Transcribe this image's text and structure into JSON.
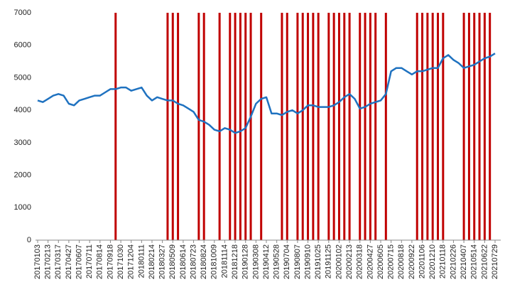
{
  "chart_data": {
    "type": "combo",
    "categories": [
      "20170103",
      null,
      "20170213",
      null,
      "20170317",
      null,
      "20170427",
      null,
      "20170607",
      null,
      "20170711",
      null,
      "20170814",
      null,
      "20170918",
      null,
      "20171030",
      null,
      "20171204",
      null,
      "20180111",
      null,
      "20180214",
      null,
      "20180327",
      null,
      "20180509",
      null,
      "20180614",
      null,
      "20180723",
      null,
      "20180824",
      null,
      "20181009",
      null,
      "20181114",
      null,
      "20181218",
      null,
      "20190128",
      null,
      "20190308",
      null,
      "20190412",
      null,
      "20190528",
      null,
      "20190704",
      null,
      "20190807",
      null,
      "20190910",
      null,
      "20191025",
      null,
      "20191125",
      null,
      "20200102",
      null,
      "20200213",
      null,
      "20200318",
      null,
      "20200427",
      null,
      "20200605",
      null,
      "20200715",
      null,
      "20200818",
      null,
      "20200922",
      null,
      "20201106",
      null,
      "20201210",
      null,
      "20210118",
      null,
      "20210226",
      null,
      "20210407",
      null,
      "20210514",
      null,
      "20210622",
      null,
      "20210729"
    ],
    "series": [
      {
        "type": "bar",
        "color": "#c00000",
        "values": [
          null,
          null,
          null,
          null,
          null,
          null,
          null,
          null,
          null,
          null,
          null,
          null,
          null,
          null,
          null,
          7000,
          null,
          null,
          null,
          null,
          null,
          null,
          null,
          null,
          null,
          7000,
          7000,
          7000,
          null,
          null,
          null,
          7000,
          7000,
          null,
          null,
          7000,
          null,
          7000,
          7000,
          7000,
          7000,
          7000,
          null,
          7000,
          null,
          null,
          null,
          7000,
          7000,
          null,
          7000,
          7000,
          7000,
          7000,
          7000,
          null,
          7000,
          7000,
          7000,
          7000,
          7000,
          null,
          7000,
          7000,
          7000,
          7000,
          null,
          7000,
          null,
          null,
          null,
          null,
          null,
          7000,
          7000,
          7000,
          7000,
          7000,
          7000,
          null,
          null,
          null,
          7000,
          7000,
          7000,
          7000,
          7000,
          7000,
          null
        ]
      },
      {
        "type": "line",
        "color": "#1f72c0",
        "values": [
          4300,
          4250,
          4350,
          4450,
          4500,
          4450,
          4200,
          4150,
          4300,
          4350,
          4400,
          4450,
          4450,
          4550,
          4650,
          4650,
          4700,
          4700,
          4600,
          4650,
          4700,
          4450,
          4300,
          4400,
          4350,
          4300,
          4300,
          4200,
          4150,
          4050,
          3950,
          3700,
          3650,
          3550,
          3400,
          3350,
          3450,
          3400,
          3300,
          3350,
          3450,
          3800,
          4200,
          4350,
          4400,
          3900,
          3900,
          3850,
          3950,
          4000,
          3900,
          4000,
          4150,
          4150,
          4100,
          4100,
          4100,
          4150,
          4250,
          4400,
          4500,
          4350,
          4050,
          4100,
          4200,
          4250,
          4300,
          4500,
          5200,
          5300,
          5300,
          5200,
          5100,
          5200,
          5200,
          5250,
          5300,
          5300,
          5600,
          5700,
          5550,
          5450,
          5300,
          5350,
          5400,
          5500,
          5600,
          5650,
          5750
        ]
      }
    ],
    "ylim": [
      0,
      7000
    ],
    "yticks": [
      0,
      1000,
      2000,
      3000,
      4000,
      5000,
      6000,
      7000
    ],
    "grid": false
  }
}
